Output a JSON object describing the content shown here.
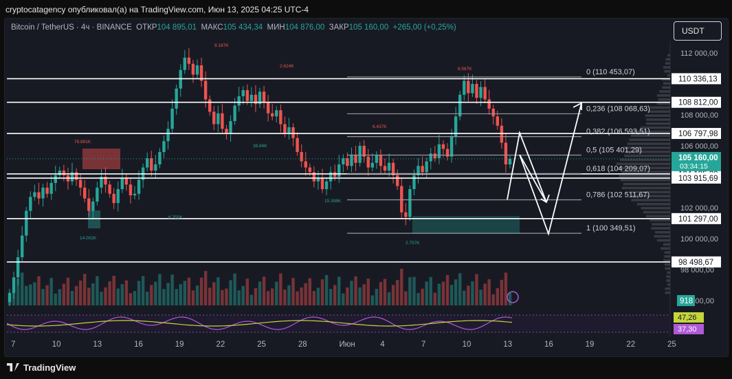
{
  "header": {
    "publish_line": "cryptocatagency опубликовал(а) на TradingView.com, Июн 13, 2025 04:25 UTC-4"
  },
  "symbol_bar": {
    "name": "Bitcoin / TetherUS · 4ч · BINANCE",
    "open_label": "ОТКР",
    "open_value": "104 895,01",
    "high_label": "МАКС",
    "high_value": "105 434,34",
    "low_label": "МИН",
    "low_value": "104 876,00",
    "close_label": "ЗАКР",
    "close_value": "105 160,00",
    "change": "+265,00 (+0,25%)"
  },
  "currency_button": "USDT",
  "footer": {
    "brand": "TradingView"
  },
  "colors": {
    "up": "#26a69a",
    "down": "#ef5350",
    "rsi": "#b05ad8",
    "rsi_ma": "#c4d63a",
    "bg": "#181a23"
  },
  "chart_data": {
    "type": "candlestick",
    "price_axis": {
      "ticks": [
        {
          "label": "112 000,00",
          "value": 112000
        },
        {
          "label": "108 000,00",
          "value": 108000
        },
        {
          "label": "106 000,00",
          "value": 106000
        },
        {
          "label": "102 000,00",
          "value": 102000
        },
        {
          "label": "100 000,00",
          "value": 100000
        },
        {
          "label": "98 000,00",
          "value": 98000
        },
        {
          "label": "96 000,00",
          "value": 96000
        }
      ],
      "ylim": [
        95500,
        113000
      ]
    },
    "time_axis": [
      "7",
      "10",
      "13",
      "16",
      "19",
      "22",
      "25",
      "28",
      "Июн",
      "4",
      "7",
      "10",
      "13",
      "16",
      "19",
      "22",
      "25"
    ],
    "candles_close": [
      96500,
      97500,
      98800,
      100200,
      101800,
      102700,
      103000,
      102600,
      103300,
      102900,
      103600,
      104100,
      104400,
      104100,
      103700,
      104300,
      103800,
      103300,
      102600,
      101800,
      102400,
      103300,
      104000,
      103500,
      102900,
      102300,
      103200,
      103900,
      103500,
      102800,
      102900,
      103800,
      104600,
      105200,
      104400,
      104800,
      105600,
      106300,
      107100,
      108400,
      109700,
      110900,
      111700,
      111300,
      110600,
      111200,
      110200,
      109000,
      108200,
      107400,
      108100,
      107100,
      106800,
      107600,
      108600,
      109200,
      109600,
      108900,
      109300,
      108700,
      109500,
      108800,
      108100,
      107900,
      108300,
      107400,
      106800,
      107200,
      106500,
      105600,
      105000,
      104600,
      104300,
      103700,
      103900,
      103200,
      103700,
      104300,
      104000,
      104800,
      105200,
      104700,
      105400,
      104900,
      106000,
      105300,
      104600,
      104900,
      105400,
      104700,
      104400,
      104900,
      104100,
      103400,
      101700,
      101400,
      103200,
      104100,
      104700,
      104300,
      105000,
      105500,
      105200,
      106100,
      105800,
      105300,
      106600,
      107900,
      109300,
      110200,
      109400,
      110000,
      109100,
      109800,
      109000,
      108400,
      107900,
      107300,
      106200,
      104800,
      105160
    ],
    "fib_levels": [
      {
        "ratio": "0",
        "label": "0 (110 453,07)",
        "value": 110453.07
      },
      {
        "ratio": "0,236",
        "label": "0,236 (108 068,63)",
        "value": 108068.63
      },
      {
        "ratio": "0,382",
        "label": "0,382 (106 593,51)",
        "value": 106593.51
      },
      {
        "ratio": "0,5",
        "label": "0,5 (105 401,29)",
        "value": 105401.29
      },
      {
        "ratio": "0,618",
        "label": "0,618 (104 209,07)",
        "value": 104209.07
      },
      {
        "ratio": "0,786",
        "label": "0,786 (102 511,67)",
        "value": 102511.67
      },
      {
        "ratio": "1",
        "label": "1 (100 349,51)",
        "value": 100349.51
      }
    ],
    "horizontal_levels": [
      {
        "label": "110 336,13",
        "value": 110336.13
      },
      {
        "label": "108 812,00",
        "value": 108812
      },
      {
        "label": "106 797,98",
        "value": 106797.98
      },
      {
        "label": "104 185,20",
        "value": 104185.2
      },
      {
        "label": "103 915,69",
        "value": 103915.69
      },
      {
        "label": "101 297,00",
        "value": 101297
      },
      {
        "label": "98 498,67",
        "value": 98498.67
      }
    ],
    "current_price": {
      "label": "105 160,00",
      "countdown": "03:34:15",
      "value": 105160
    },
    "volume_badge": "918",
    "volume_annotations": [
      "9.187K",
      "2.624K",
      "8.567K",
      "78.881K",
      "6.437K",
      "38.84K",
      "15.398K",
      "8.755K",
      "14.002K",
      "2.757K"
    ],
    "rsi": {
      "value": "47,26",
      "ma": "37,30"
    }
  }
}
